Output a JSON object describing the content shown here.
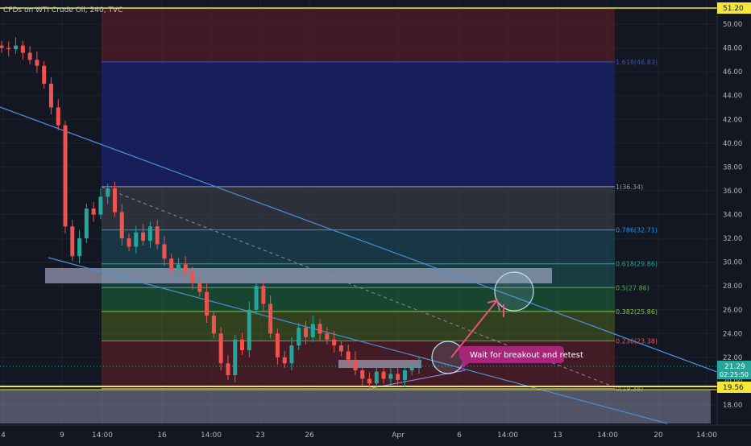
{
  "header": {
    "symbol_title": "CFDs on WTI Crude Oil, 240, TVC"
  },
  "chart_data": {
    "type": "candlestick",
    "title": "CFDs on WTI Crude Oil, 240, TVC",
    "y_axis": {
      "range": [
        17,
        52
      ],
      "ticks": [
        "18.00",
        "20.00",
        "22.00",
        "24.00",
        "26.00",
        "28.00",
        "30.00",
        "32.00",
        "34.00",
        "36.00",
        "38.00",
        "40.00",
        "42.00",
        "44.00",
        "46.00",
        "48.00",
        "50.00"
      ]
    },
    "x_axis": {
      "ticks": [
        "4",
        "9",
        "14:00",
        "16",
        "14:00",
        "23",
        "26",
        "Apr",
        "6",
        "14:00",
        "13",
        "14:00",
        "20",
        "14:00"
      ]
    },
    "fib_levels": [
      {
        "label": "1.618(46.83)",
        "value": 46.83
      },
      {
        "label": "1(36.34)",
        "value": 36.34
      },
      {
        "label": "0.786(32.71)",
        "value": 32.71
      },
      {
        "label": "0.618(29.86)",
        "value": 29.86
      },
      {
        "label": "0.5(27.86)",
        "value": 27.86
      },
      {
        "label": "0.382(25.86)",
        "value": 25.86
      },
      {
        "label": "0.236(23.38)",
        "value": 23.38
      },
      {
        "label": "0(19.38)",
        "value": 19.38
      }
    ],
    "horizontal_lines": [
      51.2,
      19.56
    ],
    "price_labels": {
      "top": "51.20",
      "current": "21.29",
      "countdown": "02:25:50",
      "bottom": "19.56"
    },
    "candles_close_path": [
      48.0,
      47.9,
      48.2,
      47.6,
      47.0,
      46.5,
      45.0,
      43.0,
      41.5,
      33.0,
      30.5,
      32.0,
      34.5,
      34.0,
      35.5,
      36.2,
      34.2,
      32.0,
      31.3,
      32.5,
      31.8,
      33.0,
      31.5,
      30.3,
      29.4,
      29.8,
      29.2,
      28.3,
      27.5,
      25.5,
      24.0,
      21.5,
      20.5,
      23.5,
      22.6,
      26.0,
      28.0,
      26.5,
      24.0,
      22.0,
      21.5,
      23.0,
      24.5,
      23.7,
      24.8,
      24.0,
      23.5,
      23.0,
      22.5,
      21.8,
      20.9,
      20.2,
      19.8,
      20.8,
      20.2,
      20.6,
      20.1,
      20.9,
      21.2,
      21.3
    ]
  },
  "annotation": {
    "text": "Wait for breakout and retest"
  },
  "colors": {
    "background": "#131722",
    "up_candle": "#26a69a",
    "down_candle": "#ef5350",
    "yellow_line": "#f5e63b",
    "trendline": "#4a90d9",
    "callout": "#a8267a",
    "arrow": "#e8527c"
  }
}
